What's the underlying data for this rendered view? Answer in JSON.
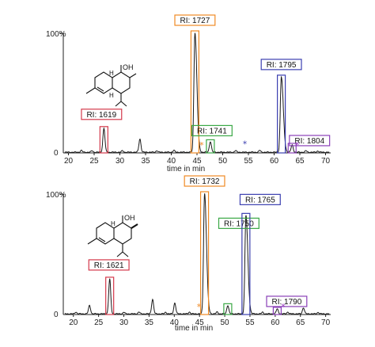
{
  "colors": {
    "trace": "#1a1a1a",
    "red": "#d4394b",
    "orange": "#f08a24",
    "green": "#3aa845",
    "blue": "#3b3fb0",
    "purple": "#8a3fb8",
    "star_orange": "#f08a24",
    "star_blue": "#3b3fb0",
    "star_purple": "#9a3fc0"
  },
  "chart_data": [
    {
      "type": "line",
      "panel": "top",
      "xlabel": "time in min",
      "ylabel_top": "100%",
      "ylabel_bottom": "0",
      "xlim": [
        19,
        71
      ],
      "ylim": [
        0,
        100
      ],
      "xticks": [
        20,
        25,
        30,
        35,
        40,
        45,
        50,
        55,
        60,
        65,
        70
      ],
      "baseline_noise_peaks": [
        [
          22.5,
          1.5
        ],
        [
          24.6,
          1.2
        ],
        [
          30.5,
          1.2
        ],
        [
          37.2,
          1.3
        ],
        [
          40.5,
          1.5
        ],
        [
          52.5,
          1.3
        ],
        [
          57.2,
          1.5
        ],
        [
          66.2,
          1.2
        ],
        [
          68.5,
          1.0
        ]
      ],
      "peaks": [
        {
          "label": "RI: 1619",
          "x": 26.9,
          "y": 20,
          "color": "red"
        },
        {
          "label": "",
          "x": 33.9,
          "y": 11,
          "color": "none"
        },
        {
          "label": "RI: 1727",
          "x": 44.6,
          "y": 100,
          "color": "orange"
        },
        {
          "label": "RI: 1741",
          "x": 47.6,
          "y": 9,
          "color": "green"
        },
        {
          "label": "RI: 1795",
          "x": 61.4,
          "y": 63,
          "color": "blue"
        },
        {
          "label": "RI: 1804",
          "x": 63.5,
          "y": 6,
          "color": "purple"
        }
      ],
      "stars": [
        {
          "x": 45.9,
          "y": 4,
          "color": "star_orange"
        },
        {
          "x": 54.3,
          "y": 5,
          "color": "star_blue"
        },
        {
          "x": 64.5,
          "y": 4,
          "color": "star_purple"
        }
      ]
    },
    {
      "type": "line",
      "panel": "bottom",
      "xlabel": "time in min",
      "ylabel_top": "100%",
      "ylabel_bottom": "0",
      "xlim": [
        18,
        71
      ],
      "ylim": [
        0,
        100
      ],
      "xticks": [
        20,
        25,
        30,
        35,
        40,
        45,
        50,
        55,
        60,
        65,
        70
      ],
      "baseline_noise_peaks": [
        [
          20.5,
          1.5
        ],
        [
          30.0,
          1.3
        ],
        [
          33.0,
          1.5
        ],
        [
          38.3,
          1.3
        ],
        [
          43.0,
          1.5
        ],
        [
          48.5,
          1.5
        ],
        [
          57.5,
          1.3
        ],
        [
          62.5,
          1.5
        ],
        [
          68.5,
          1.2
        ]
      ],
      "peaks": [
        {
          "label": "",
          "x": 23.2,
          "y": 7,
          "color": "none"
        },
        {
          "label": "RI: 1621",
          "x": 27.2,
          "y": 29,
          "color": "red"
        },
        {
          "label": "",
          "x": 35.7,
          "y": 12,
          "color": "none"
        },
        {
          "label": "",
          "x": 40.1,
          "y": 9,
          "color": "none"
        },
        {
          "label": "RI: 1732",
          "x": 46.0,
          "y": 100,
          "color": "orange"
        },
        {
          "label": "RI: 1750",
          "x": 50.6,
          "y": 7,
          "color": "green"
        },
        {
          "label": "RI: 1765",
          "x": 54.2,
          "y": 82,
          "color": "blue"
        },
        {
          "label": "RI: 1790",
          "x": 60.4,
          "y": 4,
          "color": "purple"
        },
        {
          "label": "",
          "x": 65.6,
          "y": 5,
          "color": "none"
        }
      ],
      "stars": [
        {
          "x": 44.9,
          "y": 4,
          "color": "star_orange"
        },
        {
          "x": 61.6,
          "y": 4,
          "color": "star_purple"
        }
      ]
    }
  ]
}
